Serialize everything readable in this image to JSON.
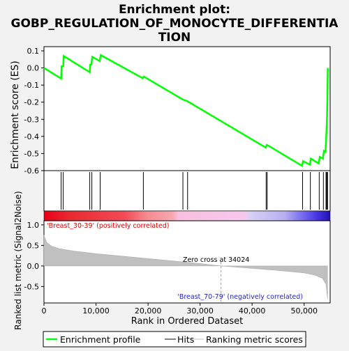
{
  "chart_data": {
    "type": "line",
    "title_line1": "Enrichment plot:",
    "title_line2": "GOBP_REGULATION_OF_MONOCYTE_DIFFERENTIA",
    "title_line3": "TION",
    "es_panel": {
      "ylabel": "Enrichment score (ES)",
      "ylim": [
        -0.6,
        0.1
      ],
      "yticks": [
        "0.1",
        "0.0",
        "-0.1",
        "-0.2",
        "-0.3",
        "-0.4",
        "-0.5",
        "-0.6"
      ],
      "line_color": "#00ff00",
      "points": [
        [
          0,
          0.0
        ],
        [
          3300,
          -0.062
        ],
        [
          3400,
          0.01
        ],
        [
          3700,
          0.01
        ],
        [
          3800,
          0.07
        ],
        [
          8800,
          -0.025
        ],
        [
          8900,
          0.02
        ],
        [
          9100,
          0.02
        ],
        [
          9300,
          0.065
        ],
        [
          10700,
          0.04
        ],
        [
          10900,
          0.075
        ],
        [
          19000,
          -0.06
        ],
        [
          19200,
          -0.05
        ],
        [
          26700,
          -0.185
        ],
        [
          27500,
          -0.193
        ],
        [
          27700,
          -0.197
        ],
        [
          42600,
          -0.465
        ],
        [
          42800,
          -0.45
        ],
        [
          43000,
          -0.452
        ],
        [
          49600,
          -0.572
        ],
        [
          49800,
          -0.545
        ],
        [
          51100,
          -0.565
        ],
        [
          51300,
          -0.53
        ],
        [
          52800,
          -0.558
        ],
        [
          53000,
          -0.52
        ],
        [
          53600,
          -0.53
        ],
        [
          53800,
          -0.485
        ],
        [
          54100,
          -0.49
        ],
        [
          54200,
          -0.435
        ],
        [
          54300,
          -0.365
        ],
        [
          54400,
          -0.29
        ],
        [
          54450,
          -0.2
        ],
        [
          54500,
          -0.1
        ],
        [
          54550,
          0.0
        ]
      ]
    },
    "hits": [
      3300,
      3700,
      8800,
      9200,
      10800,
      19100,
      26700,
      27600,
      42700,
      42900,
      49700,
      51200,
      52900,
      53700,
      54200,
      54350,
      54450,
      54500
    ],
    "ranked_panel": {
      "ylabel": "Ranked list metric (Signal2Noise)",
      "ylim": [
        -0.9,
        1.1
      ],
      "yticks": [
        "1.0",
        "0.5",
        "0.0",
        "-0.5"
      ],
      "zero_cross_label": "Zero cross at 34024",
      "zero_cross": 34024,
      "positive_label": "'Breast_30-39' (positively correlated)",
      "negative_label": "'Breast_70-79' (negatively correlated)",
      "metric_points": [
        [
          0,
          0.75
        ],
        [
          500,
          0.58
        ],
        [
          1500,
          0.48
        ],
        [
          3000,
          0.42
        ],
        [
          6000,
          0.36
        ],
        [
          10000,
          0.3
        ],
        [
          15000,
          0.24
        ],
        [
          20000,
          0.18
        ],
        [
          25000,
          0.12
        ],
        [
          30000,
          0.06
        ],
        [
          34024,
          0.0
        ],
        [
          40000,
          -0.06
        ],
        [
          45000,
          -0.11
        ],
        [
          50000,
          -0.17
        ],
        [
          52000,
          -0.22
        ],
        [
          53500,
          -0.3
        ],
        [
          54200,
          -0.45
        ],
        [
          54500,
          -0.8
        ]
      ]
    },
    "xlabel": "Rank in Ordered Dataset",
    "xlim": [
      0,
      55000
    ],
    "xticks": [
      "0",
      "10,000",
      "20,000",
      "30,000",
      "40,000",
      "50,000"
    ],
    "xtick_values": [
      0,
      10000,
      20000,
      30000,
      40000,
      50000
    ],
    "legend": {
      "entries": [
        "Enrichment profile",
        "Hits",
        "Ranking metric scores"
      ]
    }
  }
}
